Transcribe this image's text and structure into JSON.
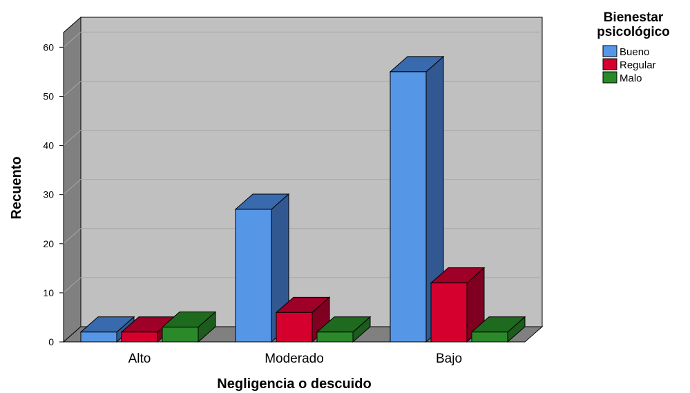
{
  "chart_data": {
    "type": "bar",
    "categories": [
      "Alto",
      "Moderado",
      "Bajo"
    ],
    "series": [
      {
        "name": "Bueno",
        "values": [
          2,
          27,
          55
        ],
        "color": "#5596e6",
        "side_color": "#315891",
        "top_color": "#3a6aae"
      },
      {
        "name": "Regular",
        "values": [
          2,
          6,
          12
        ],
        "color": "#d6002e",
        "side_color": "#800022",
        "top_color": "#9e0027"
      },
      {
        "name": "Malo",
        "values": [
          3,
          2,
          2
        ],
        "color": "#2a8a2a",
        "side_color": "#1c5c1c",
        "top_color": "#1e6a1e"
      }
    ],
    "xlabel": "Negligencia o descuido",
    "ylabel": "Recuento",
    "yticks": [
      "0",
      "10",
      "20",
      "30",
      "40",
      "50",
      "60"
    ],
    "ylim": [
      0,
      63
    ],
    "grid": true,
    "legend_title": "Bienestar psicológico",
    "legend_title_lines": [
      "Bienestar",
      "psicológico"
    ],
    "legend_position": "top-right",
    "background_color": "#c0c0c0",
    "style": "3d"
  }
}
